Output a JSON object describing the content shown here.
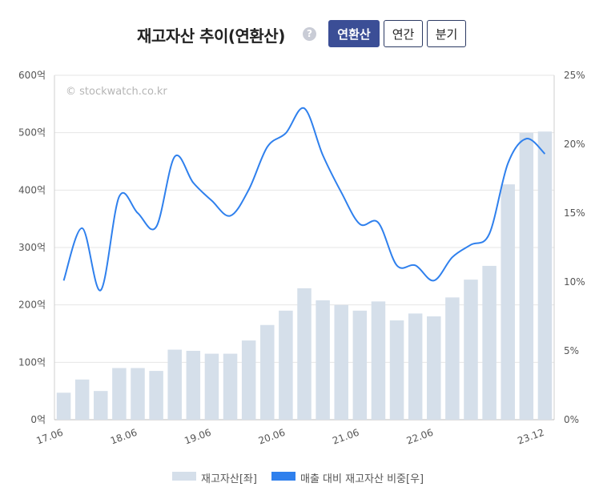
{
  "header": {
    "title": "재고자산 추이(연환산)",
    "help_icon": "question-circle-icon",
    "help_glyph": "?",
    "buttons": [
      {
        "label": "연환산",
        "active": true
      },
      {
        "label": "연간",
        "active": false
      },
      {
        "label": "분기",
        "active": false
      }
    ]
  },
  "watermark": "© stockwatch.co.kr",
  "legend": {
    "bar_label": "재고자산[좌]",
    "line_label": "매출 대비 재고자산 비중[우]"
  },
  "colors": {
    "bar": "#d5dfea",
    "line": "#2f80ed",
    "legend_line": "#2f80ed",
    "grid": "#e6e6e6",
    "active_button": "#3b4e96"
  },
  "chart_data": {
    "type": "bar+line",
    "x_tick_labels": [
      "17.06",
      "18.06",
      "19.06",
      "20.06",
      "21.06",
      "22.06",
      "23.12"
    ],
    "y_left": {
      "min": 0,
      "max": 600,
      "ticks": [
        "0억",
        "100억",
        "200억",
        "300억",
        "400억",
        "500억",
        "600억"
      ]
    },
    "y_right": {
      "min": 0,
      "max": 25,
      "ticks": [
        "0%",
        "5%",
        "10%",
        "15%",
        "20%",
        "25%"
      ]
    },
    "grid": true,
    "legend_position": "bottom",
    "series": [
      {
        "name": "재고자산[좌]",
        "type": "bar",
        "axis": "left",
        "values": [
          47,
          70,
          50,
          90,
          90,
          85,
          122,
          120,
          115,
          115,
          138,
          165,
          190,
          229,
          208,
          200,
          190,
          206,
          173,
          185,
          180,
          213,
          244,
          268,
          410,
          500,
          502
        ]
      },
      {
        "name": "매출 대비 재고자산 비중[우]",
        "type": "line",
        "axis": "right",
        "values": [
          10.1,
          13.9,
          9.4,
          16.2,
          15.0,
          14.0,
          19.1,
          17.2,
          15.9,
          14.8,
          16.7,
          19.8,
          20.8,
          22.6,
          19.2,
          16.5,
          14.2,
          14.3,
          11.2,
          11.2,
          10.1,
          11.8,
          12.7,
          13.5,
          18.6,
          20.4,
          19.3
        ]
      }
    ]
  }
}
